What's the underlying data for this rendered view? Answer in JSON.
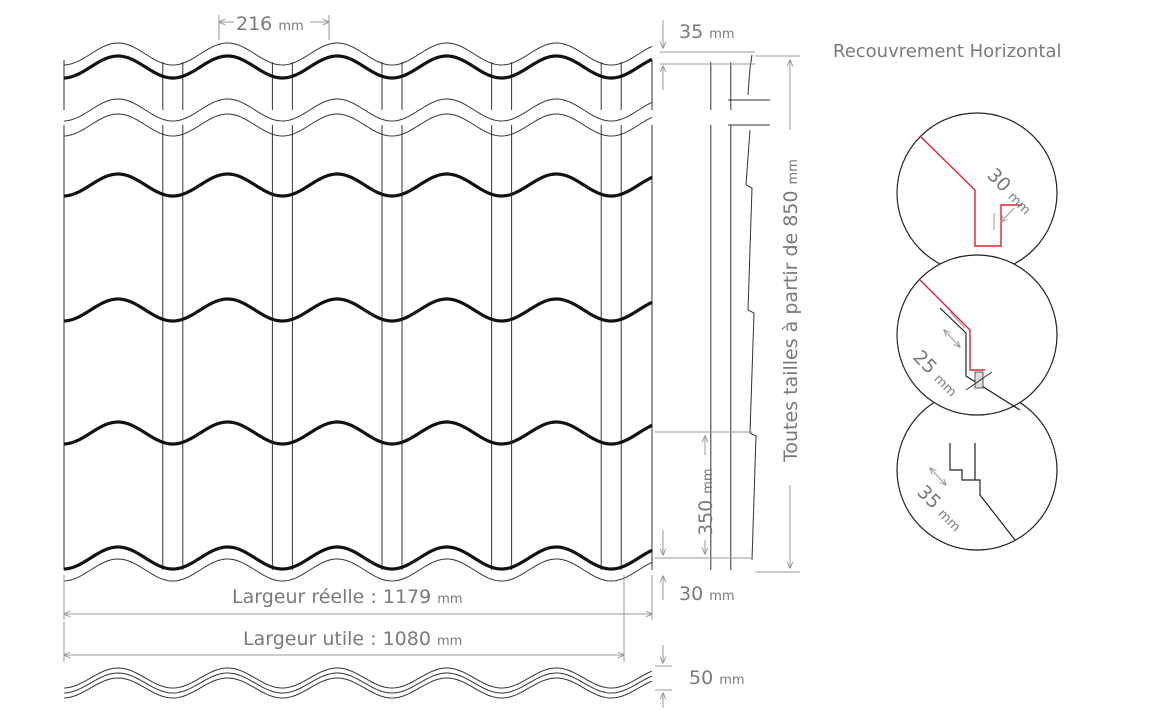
{
  "labels": {
    "pitch": {
      "value": "216",
      "unit": "mm"
    },
    "top_overlap": {
      "value": "35",
      "unit": "mm"
    },
    "title_right": "Recouvrement Horizontal",
    "height_range": {
      "text": "Toutes tailles à partir de 850",
      "unit": "mm"
    },
    "step": {
      "value": "350",
      "unit": "mm"
    },
    "bottom_overlap": {
      "value": "30",
      "unit": "mm"
    },
    "real_width": {
      "text": "Largeur réelle : 1179",
      "unit": "mm"
    },
    "useful_width": {
      "text": "Largeur utile : 1080",
      "unit": "mm"
    },
    "profile_height": {
      "value": "50",
      "unit": "mm"
    },
    "detail_1": {
      "value": "30",
      "unit": "mm"
    },
    "detail_2": {
      "value": "25",
      "unit": "mm"
    },
    "detail_3": {
      "value": "35",
      "unit": "mm"
    }
  },
  "colors": {
    "line": "#111111",
    "dimension": "#999999",
    "text": "#7a7a7a",
    "accent": "#d9232e"
  }
}
